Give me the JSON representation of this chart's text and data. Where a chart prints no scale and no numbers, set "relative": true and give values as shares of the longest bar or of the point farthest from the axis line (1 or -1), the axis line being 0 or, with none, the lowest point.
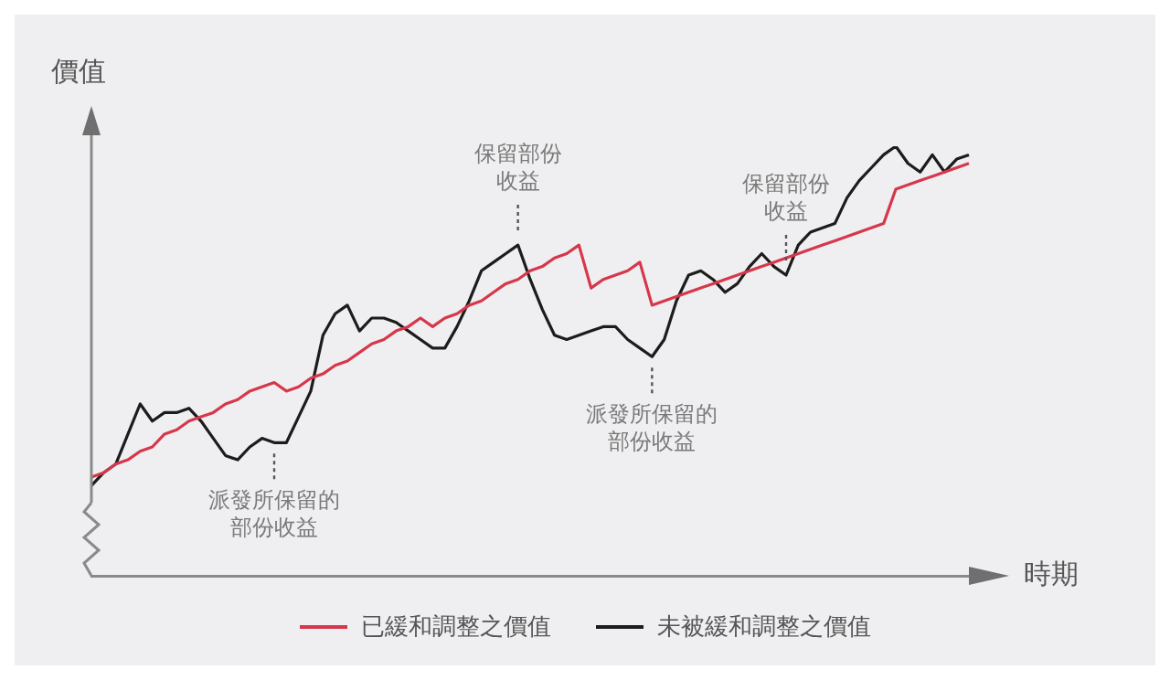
{
  "chart_data": {
    "type": "line",
    "relative": true,
    "xlabel": "時期",
    "ylabel": "價值",
    "legend": "bottom",
    "categories": [
      null,
      null,
      null,
      null,
      null,
      null,
      null,
      null,
      null,
      null,
      null,
      null,
      null,
      null,
      null,
      null,
      null,
      null,
      null,
      null,
      null,
      null,
      null,
      null,
      null,
      null,
      null,
      null,
      null,
      null,
      null,
      null,
      null,
      null,
      null,
      null,
      null,
      null,
      null,
      null,
      null,
      null,
      null,
      null,
      null,
      null,
      null,
      null,
      null,
      null,
      null,
      null,
      null,
      null,
      null,
      null,
      null,
      null,
      null,
      null,
      null,
      null,
      null,
      null,
      null,
      null,
      null,
      null,
      null,
      null,
      null,
      null,
      null
    ],
    "series": [
      {
        "name": "已緩和調整之價值",
        "color": "#d6374b",
        "values": [
          0.23,
          0.24,
          0.26,
          0.27,
          0.29,
          0.3,
          0.33,
          0.34,
          0.36,
          0.37,
          0.38,
          0.4,
          0.41,
          0.43,
          0.44,
          0.45,
          0.43,
          0.44,
          0.46,
          0.47,
          0.49,
          0.5,
          0.52,
          0.54,
          0.55,
          0.57,
          0.58,
          0.6,
          0.58,
          0.6,
          0.61,
          0.63,
          0.64,
          0.66,
          0.68,
          0.69,
          0.71,
          0.72,
          0.74,
          0.75,
          0.77,
          0.67,
          0.69,
          0.7,
          0.71,
          0.73,
          0.63,
          0.64,
          0.65,
          0.66,
          0.67,
          0.68,
          0.69,
          0.7,
          0.71,
          0.72,
          0.73,
          0.74,
          0.75,
          0.76,
          0.77,
          0.78,
          0.79,
          0.8,
          0.81,
          0.82,
          0.9,
          0.91,
          0.92,
          0.93,
          0.94,
          0.95,
          0.96
        ]
      },
      {
        "name": "未被緩和調整之價值",
        "color": "#1c1c1c",
        "values": [
          0.21,
          0.24,
          0.26,
          0.33,
          0.4,
          0.36,
          0.38,
          0.38,
          0.39,
          0.36,
          0.32,
          0.28,
          0.27,
          0.3,
          0.32,
          0.31,
          0.31,
          0.37,
          0.43,
          0.56,
          0.61,
          0.63,
          0.57,
          0.6,
          0.6,
          0.59,
          0.57,
          0.55,
          0.53,
          0.53,
          0.58,
          0.64,
          0.71,
          0.73,
          0.75,
          0.77,
          0.69,
          0.62,
          0.56,
          0.55,
          0.56,
          0.57,
          0.58,
          0.58,
          0.55,
          0.53,
          0.51,
          0.55,
          0.64,
          0.7,
          0.71,
          0.69,
          0.66,
          0.68,
          0.72,
          0.75,
          0.72,
          0.7,
          0.77,
          0.8,
          0.81,
          0.82,
          0.88,
          0.92,
          0.95,
          0.98,
          1,
          0.96,
          0.94,
          0.98,
          0.94,
          0.97,
          0.98
        ]
      }
    ],
    "annotations": [
      "派發所保留的部份收益",
      "保留部份收益",
      "派發所保留的部份收益",
      "保留部份收益"
    ]
  }
}
